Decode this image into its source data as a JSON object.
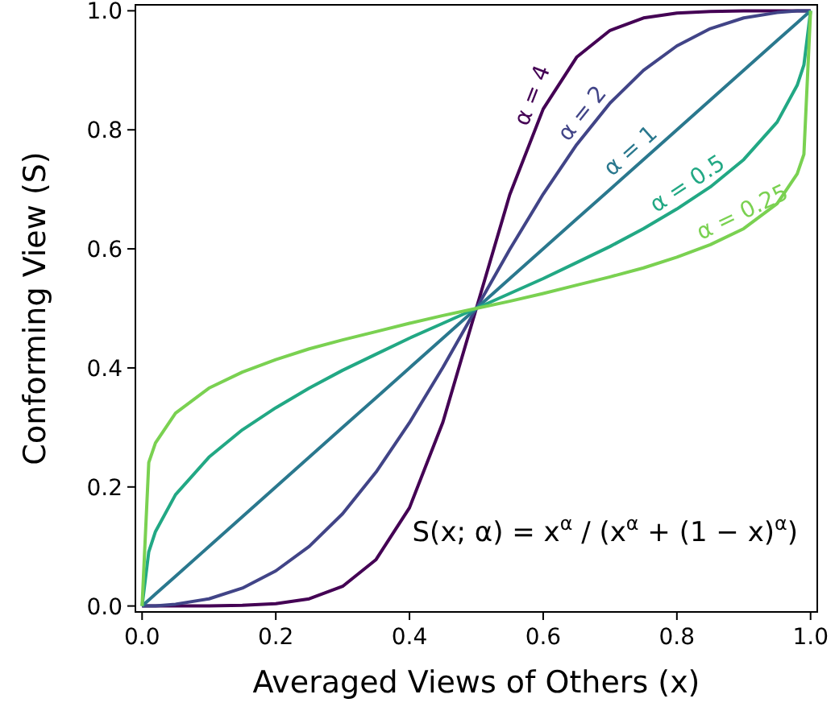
{
  "chart_data": {
    "type": "line",
    "xlabel": "Averaged Views of Others (x)",
    "ylabel": "Conforming View (S)",
    "xlim": [
      -0.01,
      1.01
    ],
    "ylim": [
      -0.01,
      1.01
    ],
    "xticks": [
      {
        "value": 0,
        "label": "0.0"
      },
      0.2,
      0.4,
      0.6,
      0.8,
      {
        "value": 1,
        "label": "1.0"
      }
    ],
    "yticks": [
      {
        "value": 0,
        "label": "0.0"
      },
      0.2,
      0.4,
      0.6,
      0.8,
      {
        "value": 1,
        "label": "1.0"
      }
    ],
    "x": [
      0,
      0.01,
      0.02,
      0.05,
      0.1,
      0.15,
      0.2,
      0.25,
      0.3,
      0.35,
      0.4,
      0.45,
      0.5,
      0.55,
      0.6,
      0.65,
      0.7,
      0.75,
      0.8,
      0.85,
      0.9,
      0.95,
      0.98,
      0.99,
      1
    ],
    "series": [
      {
        "name": "α = 4",
        "color": "#440154",
        "values": [
          0,
          0,
          0,
          0,
          0,
          0.001,
          0.004,
          0.012,
          0.033,
          0.078,
          0.165,
          0.309,
          0.5,
          0.691,
          0.835,
          0.922,
          0.967,
          0.988,
          0.996,
          0.999,
          1,
          1,
          1,
          1,
          1
        ]
      },
      {
        "name": "α = 2",
        "color": "#414487",
        "values": [
          0,
          0,
          0,
          0.003,
          0.012,
          0.03,
          0.059,
          0.1,
          0.155,
          0.225,
          0.308,
          0.401,
          0.5,
          0.599,
          0.692,
          0.775,
          0.845,
          0.9,
          0.941,
          0.97,
          0.988,
          0.997,
          1,
          1,
          1
        ]
      },
      {
        "name": "α = 1",
        "color": "#2a788e",
        "values": [
          0,
          0.01,
          0.02,
          0.05,
          0.1,
          0.15,
          0.2,
          0.25,
          0.3,
          0.35,
          0.4,
          0.45,
          0.5,
          0.55,
          0.6,
          0.65,
          0.7,
          0.75,
          0.8,
          0.85,
          0.9,
          0.95,
          0.98,
          0.99,
          1
        ]
      },
      {
        "name": "α = 0.5",
        "color": "#22a884",
        "values": [
          0,
          0.091,
          0.125,
          0.187,
          0.25,
          0.296,
          0.333,
          0.366,
          0.396,
          0.423,
          0.45,
          0.475,
          0.5,
          0.525,
          0.55,
          0.577,
          0.604,
          0.634,
          0.667,
          0.704,
          0.75,
          0.813,
          0.875,
          0.909,
          1
        ]
      },
      {
        "name": "α = 0.25",
        "color": "#7ad151",
        "values": [
          0,
          0.241,
          0.274,
          0.324,
          0.366,
          0.393,
          0.414,
          0.432,
          0.447,
          0.461,
          0.475,
          0.488,
          0.5,
          0.512,
          0.525,
          0.539,
          0.553,
          0.568,
          0.586,
          0.607,
          0.634,
          0.676,
          0.726,
          0.759,
          1
        ]
      }
    ],
    "annotations": [
      "S(x; α) = x$^{α}$ / (x$^{α}$ + (1 − x)$^{α}$)"
    ],
    "marker": "none",
    "line_style": "solid",
    "grid": false
  }
}
